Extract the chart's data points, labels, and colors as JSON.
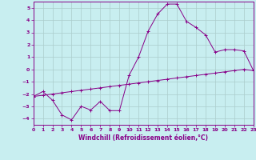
{
  "xlabel": "Windchill (Refroidissement éolien,°C)",
  "xlim": [
    0,
    23
  ],
  "ylim": [
    -4.5,
    5.5
  ],
  "yticks": [
    -4,
    -3,
    -2,
    -1,
    0,
    1,
    2,
    3,
    4,
    5
  ],
  "xticks": [
    0,
    1,
    2,
    3,
    4,
    5,
    6,
    7,
    8,
    9,
    10,
    11,
    12,
    13,
    14,
    15,
    16,
    17,
    18,
    19,
    20,
    21,
    22,
    23
  ],
  "background_color": "#c8eef0",
  "line_color": "#880088",
  "grid_color": "#aacccc",
  "curve1_x": [
    0,
    1,
    2,
    3,
    4,
    5,
    6,
    7,
    8,
    9,
    10,
    11,
    12,
    13,
    14,
    15,
    16,
    17,
    18,
    19,
    20,
    21,
    22,
    23
  ],
  "curve1_y": [
    -2.2,
    -1.8,
    -2.5,
    -3.7,
    -4.1,
    -3.0,
    -3.3,
    -2.6,
    -3.35,
    -3.35,
    -0.5,
    1.0,
    3.1,
    4.5,
    5.3,
    5.3,
    3.9,
    3.4,
    2.8,
    1.4,
    1.6,
    1.6,
    1.5,
    -0.1
  ],
  "curve2_x": [
    0,
    1,
    2,
    3,
    4,
    5,
    6,
    7,
    8,
    9,
    10,
    11,
    12,
    13,
    14,
    15,
    16,
    17,
    18,
    19,
    20,
    21,
    22,
    23
  ],
  "curve2_y": [
    -2.2,
    -2.1,
    -2.0,
    -1.9,
    -1.8,
    -1.7,
    -1.6,
    -1.5,
    -1.4,
    -1.3,
    -1.2,
    -1.1,
    -1.0,
    -0.9,
    -0.8,
    -0.7,
    -0.6,
    -0.5,
    -0.4,
    -0.3,
    -0.2,
    -0.1,
    0.0,
    -0.1
  ]
}
